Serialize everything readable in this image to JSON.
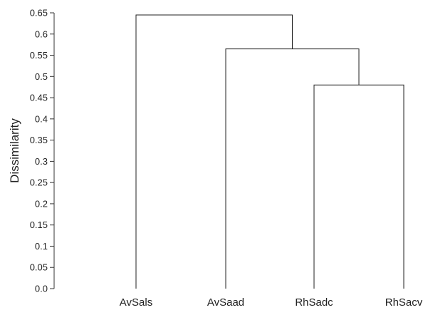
{
  "chart_data": {
    "type": "dendrogram",
    "ylabel": "Dissimilarity",
    "ylim": [
      0,
      0.65
    ],
    "yticks": [
      "0.0",
      "0.05",
      "0.1",
      "0.15",
      "0.2",
      "0.25",
      "0.3",
      "0.35",
      "0.4",
      "0.45",
      "0.5",
      "0.55",
      "0.6",
      "0.65"
    ],
    "ytick_values": [
      0,
      0.05,
      0.1,
      0.15,
      0.2,
      0.25,
      0.3,
      0.35,
      0.4,
      0.45,
      0.5,
      0.55,
      0.6,
      0.65
    ],
    "leaves": [
      "AvSals",
      "AvSaad",
      "RhSadc",
      "RhSacv"
    ],
    "merges": [
      {
        "left": "RhSadc",
        "right": "RhSacv",
        "height": 0.48
      },
      {
        "left": "AvSaad",
        "right": "RhSadc+RhSacv",
        "height": 0.565
      },
      {
        "left": "AvSals",
        "right": "AvSaad+RhSadc+RhSacv",
        "height": 0.645
      }
    ],
    "grid": false,
    "legend": "none",
    "line_color": "#222222"
  }
}
